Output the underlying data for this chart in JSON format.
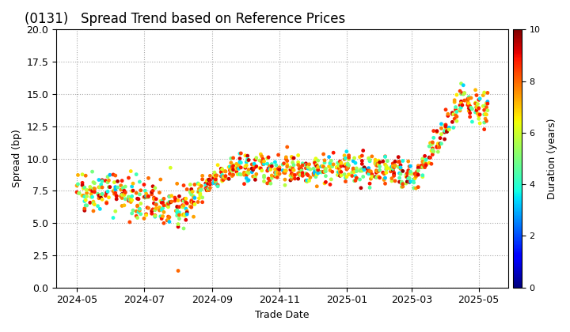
{
  "title": "(0131)   Spread Trend based on Reference Prices",
  "xlabel": "Trade Date",
  "ylabel": "Spread (bp)",
  "colorbar_label": "Duration (years)",
  "ylim": [
    0.0,
    20.0
  ],
  "yticks": [
    0.0,
    2.5,
    5.0,
    7.5,
    10.0,
    12.5,
    15.0,
    17.5,
    20.0
  ],
  "clim": [
    0,
    10
  ],
  "cticks": [
    0,
    2,
    4,
    6,
    8,
    10
  ],
  "background_color": "#ffffff",
  "grid_color": "#aaaaaa",
  "marker_size": 12,
  "colormap": "jet",
  "fig_width": 7.2,
  "fig_height": 4.2,
  "dpi": 100
}
